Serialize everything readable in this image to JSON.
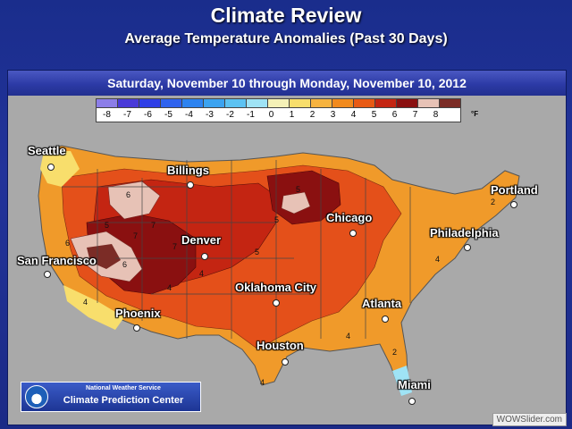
{
  "title": "Climate Review",
  "subtitle": "Average Temperature Anomalies (Past 30 Days)",
  "date_range": "Saturday, November 10 through Monday, November 10, 2012",
  "legend": {
    "labels": [
      "-8",
      "-7",
      "-6",
      "-5",
      "-4",
      "-3",
      "-2",
      "-1",
      "0",
      "1",
      "2",
      "3",
      "4",
      "5",
      "6",
      "7",
      "8"
    ],
    "colors": [
      "#8c7ee8",
      "#4a3ad8",
      "#2f3fe6",
      "#2f63ee",
      "#2d83f0",
      "#3ca3f0",
      "#5cc2f2",
      "#9fe3f5",
      "#f5f1b7",
      "#f8de6c",
      "#f6b33f",
      "#f18a1d",
      "#e85a14",
      "#c42512",
      "#8a1010",
      "#e7c2b6",
      "#7b2c26"
    ],
    "unit": "°F"
  },
  "cities": [
    {
      "name": "Seattle"
    },
    {
      "name": "Billings"
    },
    {
      "name": "Portland"
    },
    {
      "name": "Chicago"
    },
    {
      "name": "Philadelphia"
    },
    {
      "name": "Denver"
    },
    {
      "name": "San Francisco"
    },
    {
      "name": "Oklahoma City"
    },
    {
      "name": "Atlanta"
    },
    {
      "name": "Phoenix"
    },
    {
      "name": "Houston"
    },
    {
      "name": "Miami"
    }
  ],
  "contour_labels": [
    "4",
    "4",
    "4",
    "5",
    "5",
    "5",
    "5",
    "6",
    "6",
    "7",
    "7",
    "7",
    "6",
    "4",
    "4",
    "2",
    "2",
    "4"
  ],
  "footer": {
    "agency": "National Weather Service",
    "center": "Climate Prediction Center"
  },
  "watermark": "WOWSlider.com"
}
